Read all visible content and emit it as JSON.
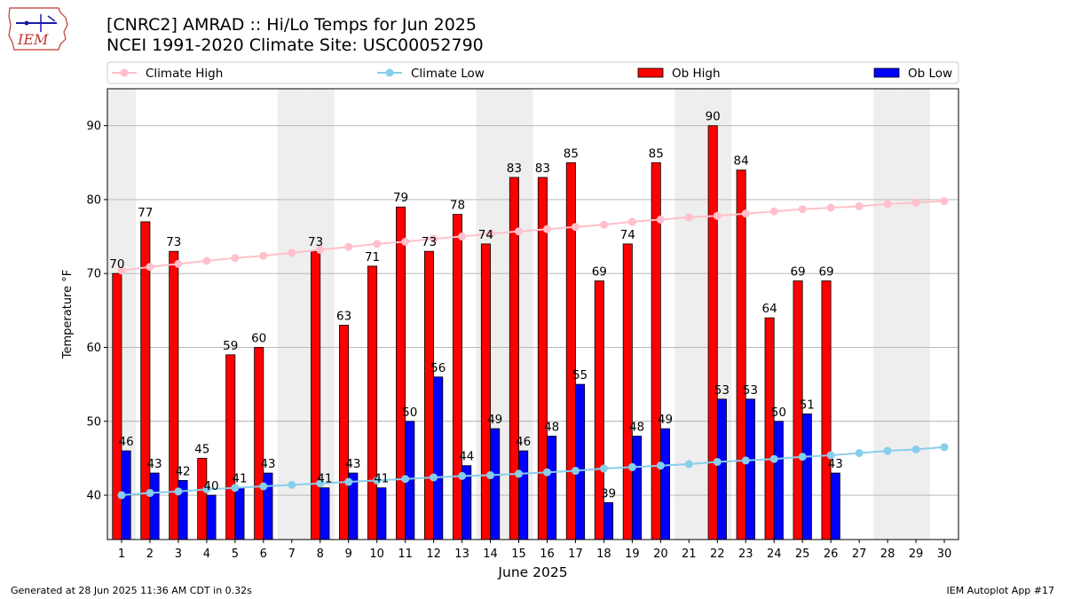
{
  "title": {
    "line1": "[CNRC2] AMRAD :: Hi/Lo Temps for Jun 2025",
    "line2": "NCEI 1991-2020 Climate Site: USC00052790"
  },
  "logo": {
    "text": "IEM"
  },
  "footer": {
    "generated": "Generated at 28 Jun 2025 11:36 AM CDT in 0.32s",
    "app": "IEM Autoplot App #17"
  },
  "colors": {
    "ob_high": "#ff0000",
    "ob_low": "#0000ff",
    "climate_high": "#ffc0cb",
    "climate_low": "#87ceeb",
    "weekend_shade": "#eeeeee",
    "grid": "#b0b0b0"
  },
  "chart_data": {
    "type": "bar",
    "xlabel": "June 2025",
    "ylabel": "Temperature °F",
    "ylim": [
      34,
      95
    ],
    "yticks": [
      40,
      50,
      60,
      70,
      80,
      90
    ],
    "grid": "horizontal",
    "legend_position": "top",
    "categories": [
      1,
      2,
      3,
      4,
      5,
      6,
      7,
      8,
      9,
      10,
      11,
      12,
      13,
      14,
      15,
      16,
      17,
      18,
      19,
      20,
      21,
      22,
      23,
      24,
      25,
      26,
      27,
      28,
      29,
      30
    ],
    "shaded_days": [
      1,
      7,
      8,
      14,
      15,
      21,
      22,
      28,
      29
    ],
    "series": [
      {
        "name": "Climate High",
        "kind": "line",
        "values": [
          70.4,
          70.9,
          71.3,
          71.7,
          72.1,
          72.4,
          72.8,
          73.2,
          73.6,
          74.0,
          74.3,
          74.7,
          75.0,
          75.4,
          75.7,
          76.0,
          76.3,
          76.6,
          77.0,
          77.3,
          77.6,
          77.8,
          78.1,
          78.4,
          78.7,
          78.9,
          79.1,
          79.4,
          79.6,
          79.8
        ]
      },
      {
        "name": "Climate Low",
        "kind": "line",
        "values": [
          40.0,
          40.3,
          40.5,
          40.8,
          41.0,
          41.2,
          41.4,
          41.6,
          41.8,
          42.0,
          42.2,
          42.4,
          42.6,
          42.7,
          42.9,
          43.1,
          43.3,
          43.6,
          43.8,
          44.0,
          44.2,
          44.5,
          44.7,
          44.9,
          45.2,
          45.4,
          45.7,
          46.0,
          46.2,
          46.5
        ]
      },
      {
        "name": "Ob High",
        "kind": "bar",
        "values": [
          70,
          77,
          73,
          45,
          59,
          60,
          null,
          73,
          63,
          71,
          79,
          73,
          78,
          74,
          83,
          83,
          85,
          69,
          74,
          85,
          null,
          90,
          84,
          64,
          69,
          69,
          null,
          null,
          null,
          null
        ]
      },
      {
        "name": "Ob Low",
        "kind": "bar",
        "values": [
          46,
          43,
          42,
          40,
          41,
          43,
          null,
          41,
          43,
          41,
          50,
          56,
          44,
          49,
          46,
          48,
          55,
          39,
          48,
          49,
          null,
          53,
          53,
          50,
          51,
          43,
          null,
          null,
          null,
          null
        ]
      }
    ]
  }
}
